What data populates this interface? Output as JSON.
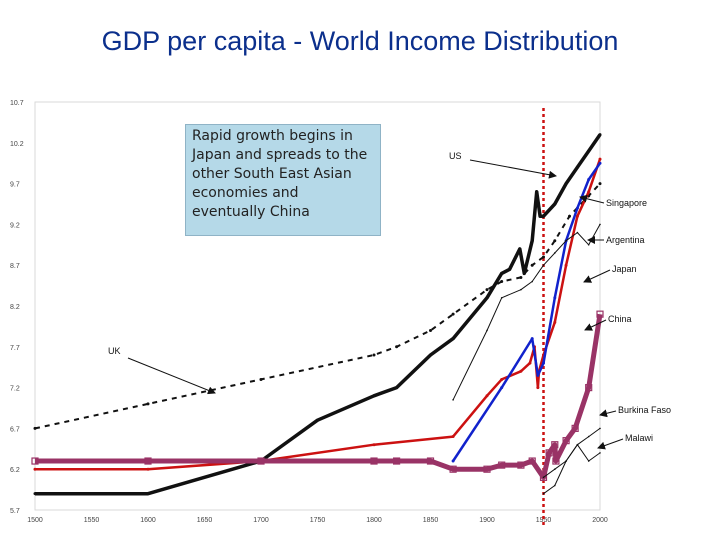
{
  "title": "GDP per capita - World Income Distribution",
  "callout": "Rapid growth begins in Japan and spreads to the other South East Asian economies and eventually China",
  "colors": {
    "title": "#0b2f8c",
    "vline": "#cc1111"
  },
  "chart_data": {
    "type": "line",
    "title": "GDP per capita - World Income Distribution",
    "xlabel": "",
    "ylabel": "",
    "xlim": [
      1500,
      2000
    ],
    "ylim": [
      5.7,
      10.7
    ],
    "x_ticks": [
      "1500",
      "1550",
      "1600",
      "1650",
      "1700",
      "1750",
      "1800",
      "1850",
      "1900",
      "1950",
      "2000"
    ],
    "y_ticks": [
      "10.7",
      "10.2",
      "9.7",
      "9.2",
      "8.7",
      "8.2",
      "7.7",
      "7.2",
      "6.7",
      "6.2",
      "5.7"
    ],
    "vertical_line_x": 1950,
    "series": [
      {
        "name": "UK",
        "color": "#111111",
        "style": "dashed",
        "x": [
          1500,
          1600,
          1700,
          1800,
          1820,
          1850,
          1870,
          1900,
          1913,
          1930,
          1940,
          1950,
          1960,
          1973,
          1990,
          2000
        ],
        "y": [
          6.7,
          7.0,
          7.3,
          7.6,
          7.7,
          7.9,
          8.1,
          8.4,
          8.5,
          8.55,
          8.7,
          8.8,
          9.0,
          9.3,
          9.55,
          9.7
        ]
      },
      {
        "name": "US",
        "color": "#111111",
        "style": "cross",
        "x": [
          1500,
          1600,
          1700,
          1750,
          1800,
          1820,
          1850,
          1870,
          1900,
          1913,
          1920,
          1929,
          1933,
          1940,
          1944,
          1947,
          1950,
          1960,
          1970,
          1980,
          1990,
          2000
        ],
        "y": [
          5.9,
          5.9,
          6.3,
          6.8,
          7.1,
          7.2,
          7.6,
          7.8,
          8.3,
          8.6,
          8.65,
          8.9,
          8.6,
          9.0,
          9.6,
          9.3,
          9.3,
          9.45,
          9.7,
          9.9,
          10.1,
          10.3
        ]
      },
      {
        "name": "Singapore",
        "color": "#cc1111",
        "style": "solid",
        "x": [
          1500,
          1600,
          1700,
          1800,
          1870,
          1900,
          1913,
          1930,
          1938,
          1942,
          1945,
          1946,
          1950,
          1960,
          1970,
          1980,
          1990,
          2000
        ],
        "y": [
          6.2,
          6.2,
          6.3,
          6.5,
          6.6,
          7.1,
          7.3,
          7.4,
          7.5,
          7.7,
          7.2,
          7.4,
          7.6,
          8.0,
          8.7,
          9.3,
          9.6,
          10.0
        ]
      },
      {
        "name": "Japan",
        "color": "#1122cc",
        "style": "solid",
        "x": [
          1870,
          1913,
          1940,
          1945,
          1950,
          1960,
          1970,
          1980,
          1990,
          2000
        ],
        "y": [
          6.3,
          7.2,
          7.8,
          7.35,
          7.5,
          8.3,
          9.0,
          9.4,
          9.75,
          9.95
        ]
      },
      {
        "name": "China",
        "color": "#993366",
        "style": "square",
        "x": [
          1500,
          1600,
          1700,
          1800,
          1820,
          1850,
          1870,
          1900,
          1913,
          1930,
          1940,
          1950,
          1955,
          1960,
          1961,
          1970,
          1978,
          1990,
          2000
        ],
        "y": [
          6.3,
          6.3,
          6.3,
          6.3,
          6.3,
          6.3,
          6.2,
          6.2,
          6.25,
          6.25,
          6.3,
          6.1,
          6.4,
          6.5,
          6.3,
          6.55,
          6.7,
          7.2,
          8.1
        ]
      },
      {
        "name": "Argentina",
        "color": "#111111",
        "style": "thin",
        "x": [
          1870,
          1900,
          1913,
          1930,
          1940,
          1950,
          1960,
          1970,
          1980,
          1990,
          2000
        ],
        "y": [
          7.05,
          7.9,
          8.3,
          8.4,
          8.5,
          8.7,
          8.85,
          9.0,
          9.1,
          8.95,
          9.2
        ]
      },
      {
        "name": "Burkina Faso",
        "color": "#111111",
        "style": "thin",
        "x": [
          1950,
          1960,
          1970,
          1980,
          1990,
          2000
        ],
        "y": [
          6.1,
          6.2,
          6.3,
          6.5,
          6.6,
          6.7
        ]
      },
      {
        "name": "Malawi",
        "color": "#111111",
        "style": "thin",
        "x": [
          1950,
          1960,
          1970,
          1980,
          1990,
          2000
        ],
        "y": [
          5.9,
          6.0,
          6.3,
          6.5,
          6.3,
          6.4
        ]
      }
    ],
    "labels": [
      {
        "text": "US",
        "for": "US"
      },
      {
        "text": "Singapore",
        "for": "Singapore"
      },
      {
        "text": "Argentina",
        "for": "Argentina"
      },
      {
        "text": "Japan",
        "for": "Japan"
      },
      {
        "text": "China",
        "for": "China"
      },
      {
        "text": "UK",
        "for": "UK"
      },
      {
        "text": "Burkina Faso",
        "for": "Burkina Faso"
      },
      {
        "text": "Malawi",
        "for": "Malawi"
      }
    ]
  }
}
